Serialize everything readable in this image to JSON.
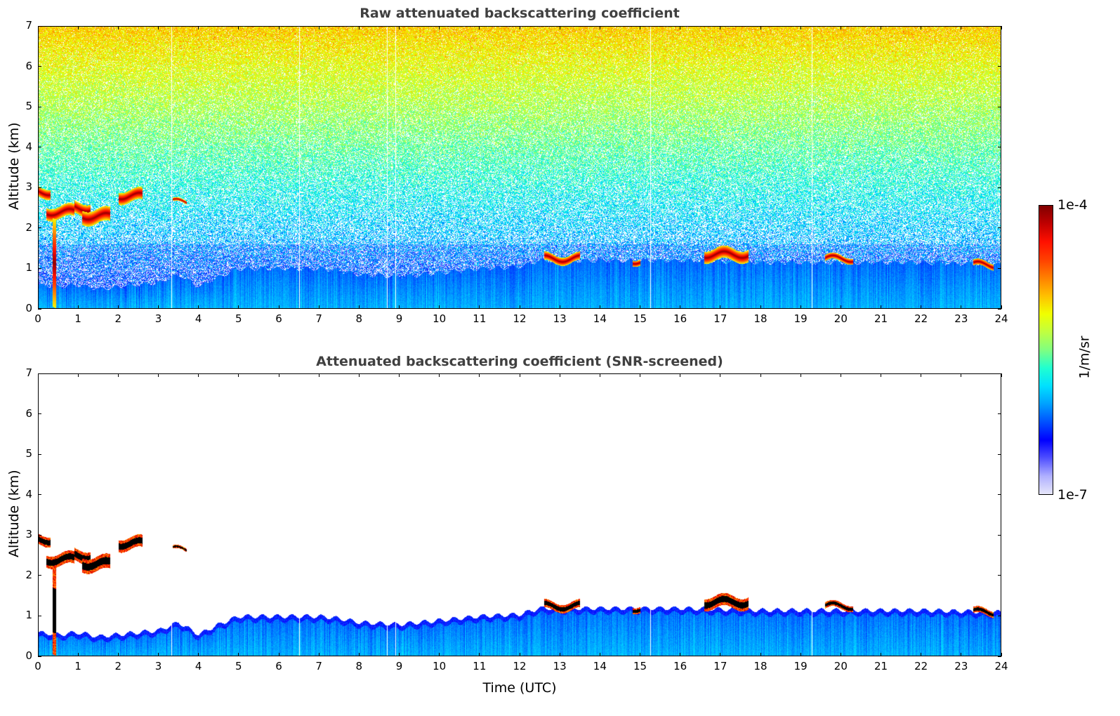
{
  "chart_data": [
    {
      "type": "heatmap",
      "title": "Raw attenuated backscattering coefficient",
      "xlabel": "",
      "ylabel": "Altitude (km)",
      "xlim": [
        0,
        24
      ],
      "ylim": [
        0,
        7
      ],
      "xticks": [
        "0",
        "1",
        "2",
        "3",
        "4",
        "5",
        "6",
        "7",
        "8",
        "9",
        "10",
        "11",
        "12",
        "13",
        "14",
        "15",
        "16",
        "17",
        "18",
        "19",
        "20",
        "21",
        "22",
        "23",
        "24"
      ],
      "yticks": [
        "0",
        "1",
        "2",
        "3",
        "4",
        "5",
        "6",
        "7"
      ],
      "screened": false
    },
    {
      "type": "heatmap",
      "title": "Attenuated backscattering coefficient (SNR-screened)",
      "xlabel": "Time (UTC)",
      "ylabel": "Altitude (km)",
      "xlim": [
        0,
        24
      ],
      "ylim": [
        0,
        7
      ],
      "xticks": [
        "0",
        "1",
        "2",
        "3",
        "4",
        "5",
        "6",
        "7",
        "8",
        "9",
        "10",
        "11",
        "12",
        "13",
        "14",
        "15",
        "16",
        "17",
        "18",
        "19",
        "20",
        "21",
        "22",
        "23",
        "24"
      ],
      "yticks": [
        "0",
        "1",
        "2",
        "3",
        "4",
        "5",
        "6",
        "7"
      ],
      "screened": true
    }
  ],
  "shared_features": {
    "boundary_layer_top_km": {
      "time": [
        0,
        0.5,
        1,
        1.5,
        2,
        3,
        3.5,
        4,
        4.5,
        5,
        6,
        7,
        7.5,
        8,
        9,
        10,
        11,
        12,
        12.5,
        14,
        16,
        18,
        20,
        22,
        24
      ],
      "alt": [
        0.6,
        0.55,
        0.6,
        0.5,
        0.55,
        0.65,
        0.85,
        0.55,
        0.8,
        1.0,
        1.0,
        1.0,
        0.95,
        0.85,
        0.8,
        0.9,
        1.0,
        1.05,
        1.2,
        1.2,
        1.2,
        1.15,
        1.15,
        1.15,
        1.1
      ]
    },
    "cloud_layers": [
      {
        "t0": 0.0,
        "t1": 0.3,
        "alt": 2.9,
        "depth": 0.25
      },
      {
        "t0": 0.2,
        "t1": 0.9,
        "alt": 2.4,
        "depth": 0.3
      },
      {
        "t0": 0.35,
        "t1": 0.45,
        "alt": 1.2,
        "depth": 2.2
      },
      {
        "t0": 0.9,
        "t1": 1.3,
        "alt": 2.5,
        "depth": 0.3
      },
      {
        "t0": 1.1,
        "t1": 1.8,
        "alt": 2.3,
        "depth": 0.35
      },
      {
        "t0": 2.0,
        "t1": 2.6,
        "alt": 2.8,
        "depth": 0.3
      },
      {
        "t0": 3.35,
        "t1": 3.7,
        "alt": 2.65,
        "depth": 0.08
      },
      {
        "t0": 12.6,
        "t1": 13.5,
        "alt": 1.25,
        "depth": 0.2
      },
      {
        "t0": 14.8,
        "t1": 15.0,
        "alt": 1.2,
        "depth": 0.15
      },
      {
        "t0": 16.6,
        "t1": 17.7,
        "alt": 1.35,
        "depth": 0.3
      },
      {
        "t0": 19.6,
        "t1": 20.3,
        "alt": 1.25,
        "depth": 0.15
      },
      {
        "t0": 23.3,
        "t1": 23.8,
        "alt": 1.1,
        "depth": 0.15
      }
    ],
    "data_gaps_utc": [
      3.33,
      6.5,
      8.7,
      8.9,
      15.25,
      19.27
    ]
  },
  "colorbar": {
    "label": "1/m/sr",
    "min_label": "1e-7",
    "max_label": "1e-4",
    "scale": "log",
    "colors": [
      "#e6e6fa",
      "#b0b0ff",
      "#5050ff",
      "#0000ff",
      "#0050ff",
      "#00a0ff",
      "#00e0ff",
      "#20ffd0",
      "#80ff80",
      "#c0ff40",
      "#f0ff00",
      "#ffc000",
      "#ff8000",
      "#ff4000",
      "#ff1000",
      "#c00000",
      "#800000"
    ]
  }
}
